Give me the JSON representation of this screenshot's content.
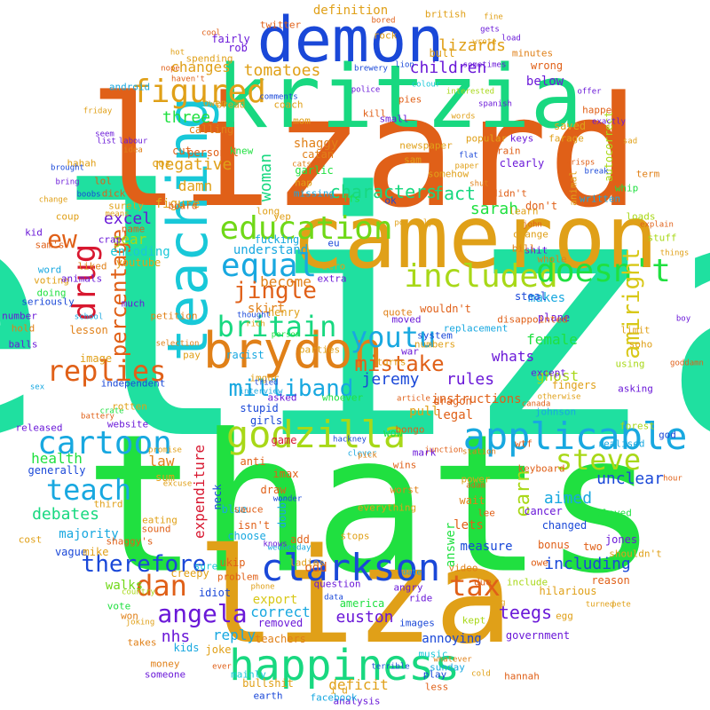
{
  "words": {
    "eliza": "eliza",
    "thats": "thats",
    "lizard": "lizard",
    "liza": "liza",
    "kritzia": "kritzia",
    "cameron": "cameron",
    "demon": "demon",
    "teaching": "teaching",
    "brydon": "brydon",
    "happiness": "happiness",
    "clarkson": "clarkson",
    "godzilla": "godzilla",
    "applicable": "applicable",
    "cartoon": "cartoon",
    "education": "education",
    "equal": "equal",
    "figured": "figured",
    "included": "included",
    "doesnt": "doesn't",
    "drug": "drug",
    "britain": "britain",
    "youtu": "youtu",
    "replies": "replies",
    "teach": "teach",
    "steve": "steve",
    "tax": "tax",
    "dan": "dan",
    "angela": "angela",
    "therefore": "therefore",
    "milliband": "milliband",
    "amiright": "amiright",
    "jingle": "jingle",
    "percentage": "percentage",
    "mistake": "mistake",
    "lizards": "lizards",
    "children": "children",
    "characters": "characters",
    "tomatoes": "tomatoes",
    "definition": "definition",
    "excel": "excel",
    "negative": "negative",
    "three": "three",
    "changes": "changes",
    "fact": "fact",
    "sarah": "sarah",
    "ew": "ew",
    "gear": "gear",
    "encoding": "encoding",
    "understand": "understand",
    "become": "become",
    "skirt": "skirt",
    "rules": "rules",
    "whats": "whats",
    "jeremy": "jeremy",
    "female": "female",
    "ghost": "ghost",
    "instructions": "instructions",
    "teegs": "teegs",
    "euston": "euston",
    "nhs": "nhs",
    "reply": "reply",
    "correct": "correct",
    "export": "export",
    "walks": "walks",
    "debates": "debates",
    "health": "health",
    "expenditure": "expenditure",
    "law": "law",
    "unclear": "unclear",
    "including": "including",
    "aimed": "aimed",
    "earn": "earn",
    "deficit": "deficit",
    "annoying": "annoying",
    "measure": "measure",
    "answer": "answer",
    "lets": "lets",
    "woman": "woman",
    "newspaper": "newspaper",
    "sam": "sam",
    "somehow": "somehow",
    "coach": "coach",
    "fucking": "fucking",
    "youtube": "youtube",
    "damn": "damn",
    "below": "below",
    "wrong": "wrong",
    "bull": "bull",
    "rob": "rob",
    "fairly": "fairly",
    "labour": "labour",
    "idea": "idea",
    "cut": "cut",
    "figure": "figure",
    "personal": "personal",
    "catan": "catan",
    "shaggy": "shaggy",
    "garlic": "garlic",
    "ffs": "ffs",
    "henry": "henry",
    "rich": "rich",
    "racist": "racist",
    "person": "person",
    "replacement": "replacement",
    "moved": "moved",
    "makes": "makes",
    "plane": "plane",
    "fingers": "fingers",
    "steal": "steal",
    "disappointed": "disappointed",
    "wouldnt": "wouldn't",
    "imgur": "imgur",
    "lesson": "lesson",
    "image": "image",
    "independent": "independent",
    "stupid": "stupid",
    "girls": "girls",
    "anti": "anti",
    "imax": "imax",
    "draw": "draw",
    "game": "game",
    "wow": "wow",
    "legal": "legal",
    "dragon": "dragon",
    "neck": "neck",
    "sum": "sum",
    "majority": "majority",
    "vague": "vague",
    "mike": "mike",
    "generally": "generally",
    "blue": "blue",
    "doubt": "doubt",
    "isnt": "isn't",
    "add": "add",
    "ukip": "ukip",
    "odd": "odd",
    "removed": "removed",
    "america": "america",
    "teachers": "teachers",
    "kids": "kids",
    "idiot": "idiot",
    "government": "government",
    "jones": "jones",
    "changed": "changed",
    "cancer": "cancer",
    "bonus": "bonus",
    "hilarious": "hilarious",
    "reason": "reason",
    "whatever": "whatever",
    "bullshit": "bullshit",
    "two": "two",
    "wait": "wait",
    "stops": "stops",
    "choose": "choose",
    "sure": "sure",
    "creepy": "creepy",
    "joke": "joke",
    "joking": "joking",
    "released": "released",
    "sex": "sex",
    "school": "school",
    "voting": "voting",
    "word": "word",
    "coupon": "coup",
    "boobs": "boobs",
    "means": "means",
    "sauce": "sauce",
    "third": "third",
    "cost": "cost",
    "vote": "vote",
    "won": "won",
    "country": "country",
    "mainly": "mainly",
    "play": "play",
    "music": "music",
    "kept": "kept",
    "images": "images",
    "ride": "ride",
    "angry": "angry",
    "date": "date",
    "question": "question",
    "data": "data",
    "egg": "egg",
    "pete": "pete",
    "shouldnt": "shouldn't",
    "keyboard": "keyboard",
    "played": "played",
    "forest": "forest",
    "realised": "realised",
    "god": "god",
    "hour": "hour",
    "asking": "asking",
    "limit": "limit",
    "using": "using",
    "except": "except",
    "whip": "whip",
    "loads": "loads",
    "term": "term",
    "autocorrect": "autocorrect",
    "animal": "animal",
    "written": "written",
    "offer": "offer",
    "happen": "happen",
    "minutes": "minutes",
    "spanish": "spanish",
    "pies": "pies",
    "farage": "farage",
    "kill": "kill",
    "lion": "lion",
    "colour": "colour",
    "police": "police",
    "comments": "comments",
    "popular": "popular",
    "train": "train",
    "clearly": "clearly",
    "keys": "keys",
    "flat": "flat",
    "paper": "paper",
    "shut": "shut",
    "didnt": "didn't",
    "learn": "learn",
    "dont": "don't",
    "saved": "saved",
    "explain": "explain",
    "stuff": "stuff",
    "things": "things",
    "spending": "spending",
    "nope": "nope",
    "havent": "haven't",
    "owen": "owen",
    "bread": "bread",
    "calling": "calling",
    "seem": "seem",
    "list": "list",
    "nap": "nap",
    "missing": "missing",
    "coz": "coz",
    "knew": "knew",
    "excuse": "excuse",
    "pull": "pull",
    "junction": "junction",
    "mark": "mark",
    "wins": "wins",
    "adam": "adam",
    "power": "power",
    "lee": "lee",
    "worst": "worst",
    "station": "station",
    "wtf": "wtf",
    "website": "website",
    "crate": "crate",
    "promise": "promise",
    "battery": "battery",
    "asked": "asked",
    "quote": "quote",
    "article": "article",
    "war": "war",
    "turns": "turns",
    "whoever": "whoever",
    "bongo": "bongo",
    "johnson": "johnson",
    "canada": "canada",
    "system": "system",
    "parties": "parties",
    "petition": "petition",
    "much": "much",
    "pay": "pay",
    "selection": "selection",
    "rotten": "rotten",
    "balls": "balls",
    "number": "number",
    "hold": "hold",
    "kid": "kid",
    "android": "android",
    "british": "british",
    "fine": "fine",
    "gets": "gets",
    "load": "load",
    "brewery": "brewery",
    "whole": "whole",
    "shit": "shit",
    "lose": "lose",
    "zero": "zero",
    "extra": "extra",
    "thought": "thought",
    "numbers": "numbers",
    "bill": "bill",
    "soho": "soho",
    "goddamn": "goddamn",
    "boy": "boy",
    "otherwise": "otherwise",
    "wait2": "wait",
    "dick": "dick",
    "surely": "surely",
    "board": "board",
    "name": "name",
    "crap": "crap",
    "mom": "mom",
    "cats": "cats",
    "john": "john",
    "orange": "orange",
    "possibly": "possibly",
    "sams": "sam's",
    "shaggys": "shaggy's",
    "animals": "animals",
    "seriously": "seriously",
    "doing": "doing",
    "liked": "liked",
    "long": "long",
    "eu": "eu",
    "ok": "ok",
    "ffs2": "ffs",
    "hannah": "hannah",
    "less": "less",
    "sunday": "sunday",
    "cold": "cold",
    "earth": "earth",
    "analysis": "analysis",
    "id": "i'd",
    "facebook": "facebook",
    "ladies": "ladies",
    "wednesday": "wednesday",
    "phone": "phone",
    "money": "money",
    "someone": "someone",
    "takes": "takes",
    "ever": "ever",
    "pick": "pick",
    "knows": "knows",
    "video": "video",
    "include": "include",
    "owe": "owe",
    "due": "due",
    "turned": "turned",
    "along": "along",
    "wrote": "wrote",
    "small": "small",
    "words": "words",
    "android2": "android",
    "bring": "bring",
    "clever": "clever",
    "change": "change",
    "brought": "brought",
    "eating": "eating",
    "sound": "sound",
    "problem": "problem",
    "wonder": "wonder",
    "everything": "everything",
    "hackney": "hackney",
    "exactly": "exactly",
    "tried": "tried",
    "interview": "interview",
    "terrible": "terrible",
    "bored": "bored",
    "rock": "rock",
    "yep": "yep",
    "twitter": "twitter",
    "break": "break",
    "crisps": "crisps",
    "sad": "sad",
    "friday": "friday",
    "interested": "interested",
    "sometimes": "sometimes",
    "lol": "lol",
    "hahah": "hahah",
    "hot": "hot",
    "cool": "cool"
  },
  "colors": {
    "teal": "#1fe0a0",
    "green": "#20e040",
    "orange": "#e06018",
    "gold": "#e0a018",
    "blue": "#1a48d8",
    "background": "#ffffff"
  }
}
